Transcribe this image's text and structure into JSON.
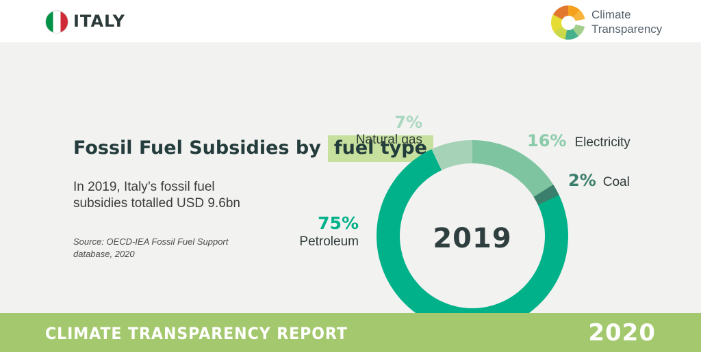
{
  "header": {
    "country": "ITALY",
    "flag_colors": [
      "#009246",
      "#ffffff",
      "#ce2b37"
    ],
    "logo_wordmark_line1": "Climate",
    "logo_wordmark_line2": "Transparency",
    "logo_colors": [
      "#e2772e",
      "#f5a11d",
      "#f8b43c",
      "#ffffff",
      "#a2cf8c",
      "#45b08b",
      "#cbd84a",
      "#e5dd33"
    ]
  },
  "panel": {
    "title_prefix": "Fossil Fuel Subsidies by",
    "title_highlight": "fuel type",
    "highlight_bg": "#c8e09d",
    "subtitle_line1": "In 2019, Italy’s fossil fuel",
    "subtitle_line2": "subsidies totalled USD 9.6bn",
    "source_line1": "Source: OECD-IEA Fossil Fuel Support",
    "source_line2": "database, 2020"
  },
  "chart_data": {
    "type": "pie",
    "subtype": "donut",
    "title": "Fossil Fuel Subsidies by fuel type",
    "units": "%",
    "center_label": "2019",
    "start_angle_offset_deg": -25.2,
    "legend_position": "around-chart",
    "segments": [
      {
        "label": "Natural gas",
        "value": 7,
        "pct_label": "7%",
        "color": "#a6d3b8",
        "pct_color": "#a9d7c0"
      },
      {
        "label": "Electricity",
        "value": 16,
        "pct_label": "16%",
        "color": "#7fc4a1",
        "pct_color": "#8bcbaa"
      },
      {
        "label": "Coal",
        "value": 2,
        "pct_label": "2%",
        "color": "#3a7f6b",
        "pct_color": "#3a7f6b"
      },
      {
        "label": "Petroleum",
        "value": 75,
        "pct_label": "75%",
        "color": "#00b189",
        "pct_color": "#00b189"
      }
    ],
    "background_color": "#f2f2f0"
  },
  "footer": {
    "report_title": "CLIMATE TRANSPARENCY REPORT",
    "year": "2020",
    "bar_color": "#a4c86e"
  }
}
